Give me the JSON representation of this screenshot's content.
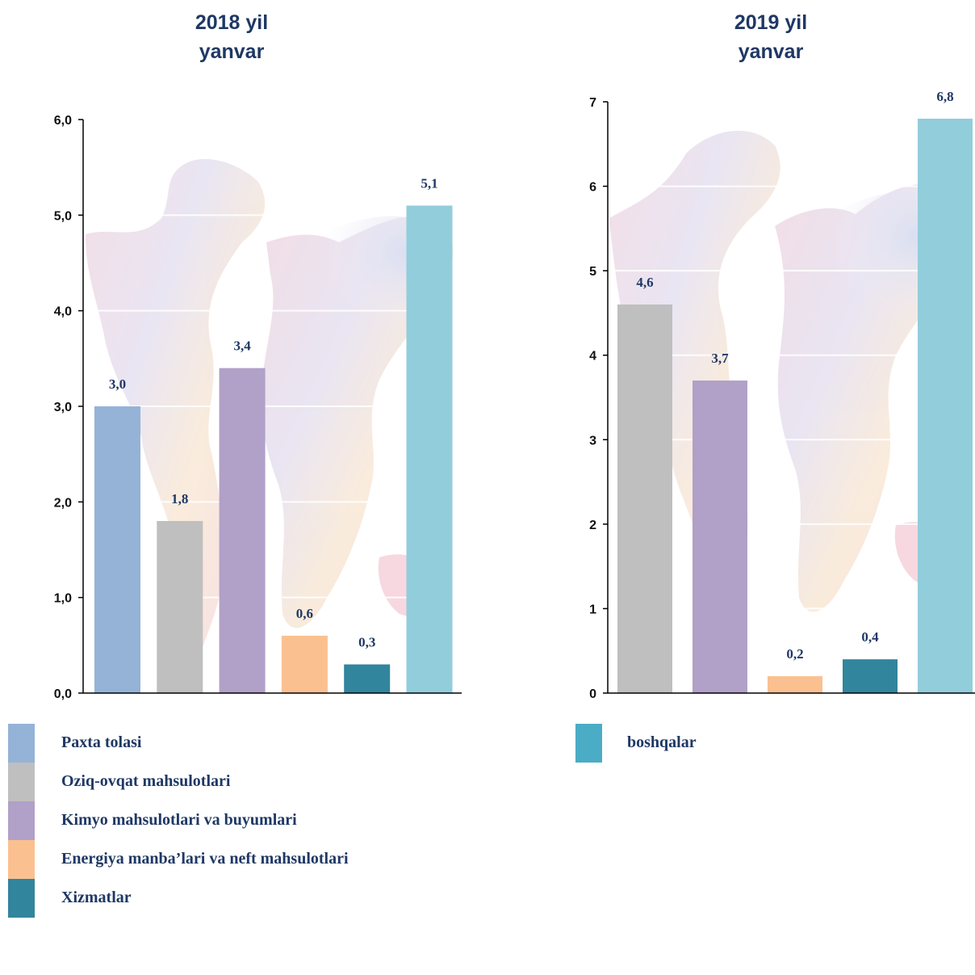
{
  "colors": {
    "paxta": "#95b3d7",
    "oziq": "#bfbfbf",
    "kimyo": "#b1a0c7",
    "energiya": "#fac090",
    "xizmat": "#31859c",
    "boshqa": "#92cddc",
    "boshqa_legend": "#4bacc6"
  },
  "chart_data": [
    {
      "type": "bar",
      "title": [
        "2018 yil",
        "yanvar"
      ],
      "ylim": [
        0,
        6
      ],
      "yticks": [
        "0,0",
        "1,0",
        "2,0",
        "3,0",
        "4,0",
        "5,0",
        "6,0"
      ],
      "ytick_values": [
        0,
        1,
        2,
        3,
        4,
        5,
        6
      ],
      "grid": true,
      "series": [
        {
          "name": "Paxta tolasi",
          "value": 3.0,
          "label": "3,0",
          "color": "#95b3d7"
        },
        {
          "name": "Oziq-ovqat mahsulotlari",
          "value": 1.8,
          "label": "1,8",
          "color": "#bfbfbf"
        },
        {
          "name": "Kimyo mahsulotlari va buyumlari",
          "value": 3.4,
          "label": "3,4",
          "color": "#b1a0c7"
        },
        {
          "name": "Energiya manba’lari va neft mahsulotlari",
          "value": 0.6,
          "label": "0,6",
          "color": "#fac090"
        },
        {
          "name": "Xizmatlar",
          "value": 0.3,
          "label": "0,3",
          "color": "#31859c"
        },
        {
          "name": "boshqalar",
          "value": 5.1,
          "label": "5,1",
          "color": "#92cddc"
        }
      ]
    },
    {
      "type": "bar",
      "title": [
        "2019 yil",
        "yanvar"
      ],
      "ylim": [
        0,
        7
      ],
      "yticks": [
        "0",
        "1",
        "2",
        "3",
        "4",
        "5",
        "6",
        "7"
      ],
      "ytick_values": [
        0,
        1,
        2,
        3,
        4,
        5,
        6,
        7
      ],
      "grid": true,
      "series": [
        {
          "name": "Oziq-ovqat mahsulotlari",
          "value": 4.6,
          "label": "4,6",
          "color": "#bfbfbf"
        },
        {
          "name": "Kimyo mahsulotlari va buyumlari",
          "value": 3.7,
          "label": "3,7",
          "color": "#b1a0c7"
        },
        {
          "name": "Energiya manba’lari va neft mahsulotlari",
          "value": 0.2,
          "label": "0,2",
          "color": "#fac090"
        },
        {
          "name": "Xizmatlar",
          "value": 0.4,
          "label": "0,4",
          "color": "#31859c"
        },
        {
          "name": "boshqalar",
          "value": 6.8,
          "label": "6,8",
          "color": "#92cddc"
        }
      ]
    }
  ],
  "legend": {
    "items": [
      {
        "label": "Paxta tolasi",
        "color": "#95b3d7"
      },
      {
        "label": "Oziq-ovqat mahsulotlari",
        "color": "#bfbfbf"
      },
      {
        "label": "Kimyo mahsulotlari va buyumlari",
        "color": "#b1a0c7"
      },
      {
        "label": "Energiya manba’lari va neft mahsulotlari",
        "color": "#fac090"
      },
      {
        "label": "Xizmatlar",
        "color": "#31859c"
      },
      {
        "label": "boshqalar",
        "color": "#4bacc6"
      }
    ]
  }
}
